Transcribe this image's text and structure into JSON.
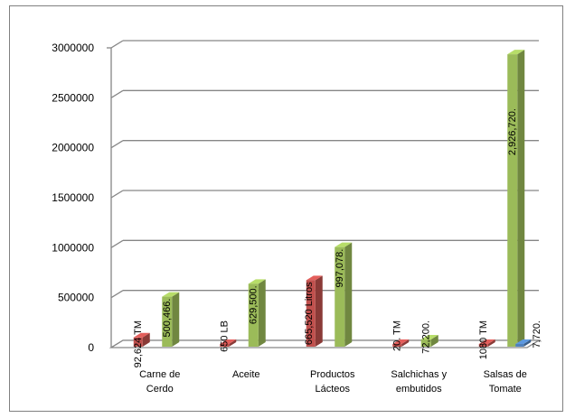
{
  "chart_data": {
    "type": "bar",
    "title": "",
    "xlabel": "",
    "ylabel": "",
    "ylim": [
      0,
      3000000
    ],
    "yticks": [
      "0",
      "500000",
      "1000000",
      "1500000",
      "2000000",
      "2500000",
      "3000000"
    ],
    "categories": [
      [
        "Carne de",
        "Cerdo"
      ],
      [
        "Aceite"
      ],
      [
        "Productos",
        "Lácteos"
      ],
      [
        "Salchichas y",
        "embutidos"
      ],
      [
        "Salsas de",
        "Tomate"
      ]
    ],
    "series": [
      {
        "color": "#c0504d",
        "values": [
          92624,
          650,
          665520,
          20,
          1080
        ],
        "labels": [
          "92,624 TM",
          "650 LB",
          "665,520 Litros",
          "20. TM",
          "1080 TM"
        ]
      },
      {
        "color": "#9bbb59",
        "values": [
          500466,
          629500,
          997078,
          72200,
          2926720
        ],
        "labels": [
          "500,466.",
          "629,500.",
          "997,078.",
          "72,200.",
          "2,926,720."
        ]
      },
      {
        "color": "#4f81bd",
        "values": [
          0,
          0,
          0,
          0,
          7720
        ],
        "labels": [
          "",
          "",
          "",
          "",
          "7,720."
        ]
      }
    ],
    "grid": true,
    "legend": "none",
    "style": "3d-column"
  }
}
